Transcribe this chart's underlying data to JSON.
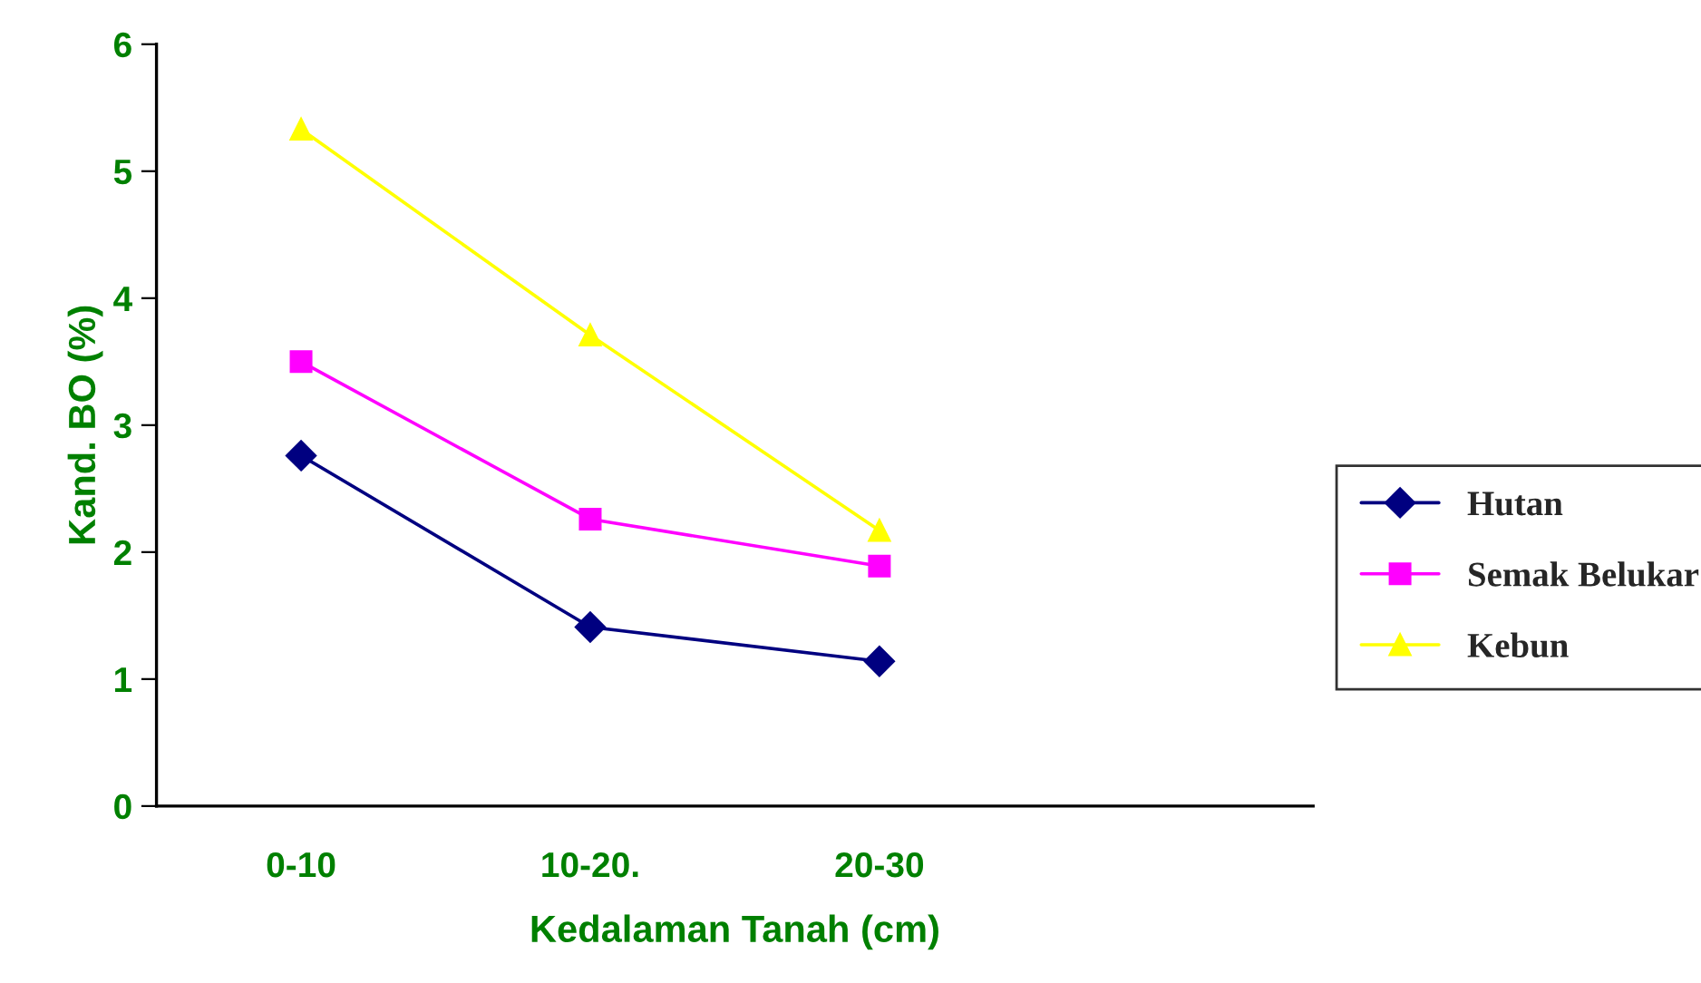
{
  "chart_data": {
    "type": "line",
    "xlabel": "Kedalaman Tanah (cm)",
    "ylabel": "Kand. BO (%)",
    "categories": [
      "0-10",
      "10-20.",
      "20-30",
      null
    ],
    "series": [
      {
        "name": "Hutan",
        "color": "#000080",
        "marker": "diamond",
        "values": [
          2.76,
          1.41,
          1.14,
          null
        ]
      },
      {
        "name": "Semak Belukar",
        "color": "#ff00ff",
        "marker": "square",
        "values": [
          3.5,
          2.26,
          1.89,
          null
        ]
      },
      {
        "name": "Kebun",
        "color": "#ffff00",
        "marker": "triangle",
        "values": [
          5.33,
          3.71,
          2.17,
          null
        ]
      }
    ],
    "ylim": [
      0,
      6
    ],
    "yticks": [
      0,
      1,
      2,
      3,
      4,
      5,
      6
    ],
    "grid": false,
    "legend": "right",
    "line_style": "solid"
  }
}
